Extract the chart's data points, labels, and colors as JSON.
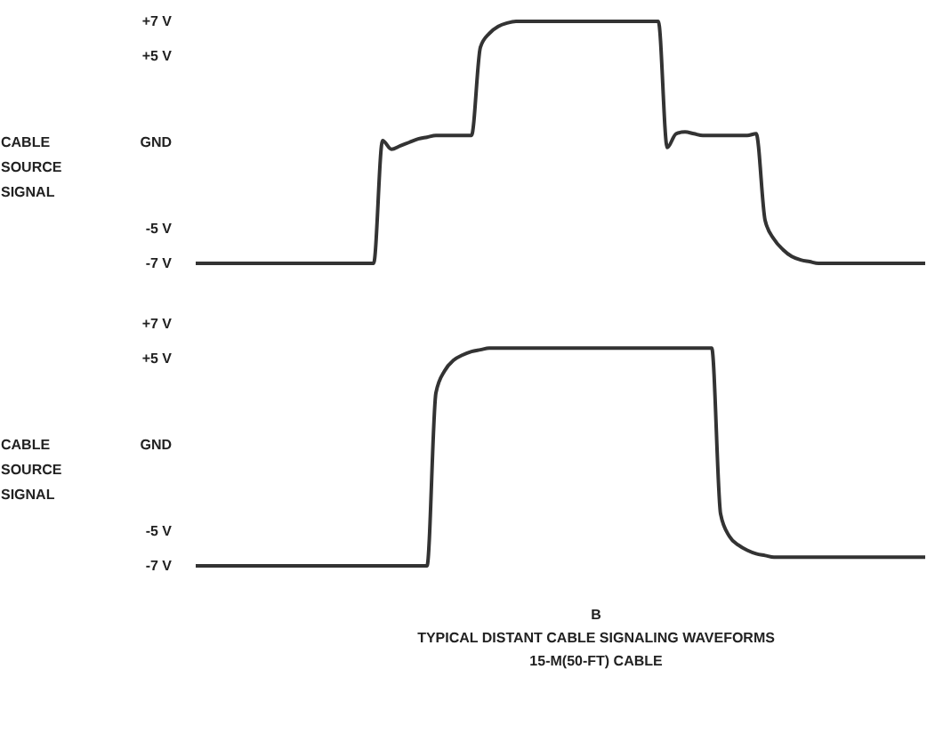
{
  "chart_data": [
    {
      "type": "line",
      "ylabel": "CABLE SOURCE SIGNAL",
      "color": "#333333",
      "grid": false,
      "ylim": [
        -7,
        7
      ],
      "yticks": [
        {
          "value": 7,
          "label": "+7 V"
        },
        {
          "value": 5,
          "label": "+5 V"
        },
        {
          "value": 0,
          "label": "GND"
        },
        {
          "value": -5,
          "label": "-5 V"
        },
        {
          "value": -7,
          "label": "-7 V"
        }
      ],
      "categories": [
        null,
        null,
        null,
        null,
        null,
        null,
        null,
        null,
        null,
        null,
        null,
        null,
        null,
        null,
        null,
        null,
        null,
        null,
        null,
        null,
        null,
        null,
        null,
        null,
        null,
        null,
        null,
        null,
        null,
        null,
        null,
        null,
        null,
        null,
        null,
        null,
        null,
        null,
        null,
        null,
        null,
        null,
        null,
        null,
        null,
        null,
        null,
        null,
        null,
        null,
        null,
        null,
        null,
        null,
        null,
        null,
        null,
        null,
        null,
        null,
        null,
        null,
        null,
        null,
        null,
        null,
        null,
        null,
        null,
        null,
        null,
        null,
        null,
        null,
        null,
        null,
        null,
        null,
        null,
        null,
        null,
        null,
        null
      ],
      "values": [
        -7,
        -7,
        -7,
        -7,
        -7,
        -7,
        -7,
        -7,
        -7,
        -7,
        -7,
        -7,
        -7,
        -7,
        -7,
        -7,
        -7,
        -7,
        -7,
        -7,
        -7,
        0.1,
        -0.4,
        -0.2,
        0,
        0.2,
        0.3,
        0.4,
        0.4,
        0.4,
        0.4,
        0.4,
        5.5,
        6.3,
        6.7,
        6.9,
        7,
        7,
        7,
        7,
        7,
        7,
        7,
        7,
        7,
        7,
        7,
        7,
        7,
        7,
        7,
        7,
        7,
        -0.3,
        0.5,
        0.6,
        0.5,
        0.4,
        0.4,
        0.4,
        0.4,
        0.4,
        0.4,
        0.5,
        -4.5,
        -5.6,
        -6.2,
        -6.6,
        -6.8,
        -6.9,
        -7,
        -7,
        -7,
        -7,
        -7,
        -7,
        -7,
        -7,
        -7,
        -7,
        -7,
        -7,
        -7
      ]
    },
    {
      "type": "line",
      "ylabel": "CABLE SOURCE SIGNAL",
      "color": "#333333",
      "grid": false,
      "ylim": [
        -7,
        7
      ],
      "yticks": [
        {
          "value": 7,
          "label": "+7 V"
        },
        {
          "value": 5,
          "label": "+5 V"
        },
        {
          "value": 0,
          "label": "GND"
        },
        {
          "value": -5,
          "label": "-5 V"
        },
        {
          "value": -7,
          "label": "-7 V"
        }
      ],
      "categories": [
        null,
        null,
        null,
        null,
        null,
        null,
        null,
        null,
        null,
        null,
        null,
        null,
        null,
        null,
        null,
        null,
        null,
        null,
        null,
        null,
        null,
        null,
        null,
        null,
        null,
        null,
        null,
        null,
        null,
        null,
        null,
        null,
        null,
        null,
        null,
        null,
        null,
        null,
        null,
        null,
        null,
        null,
        null,
        null,
        null,
        null,
        null,
        null,
        null,
        null,
        null,
        null,
        null,
        null,
        null,
        null,
        null,
        null,
        null,
        null,
        null,
        null,
        null,
        null,
        null,
        null,
        null,
        null,
        null,
        null,
        null,
        null,
        null,
        null,
        null,
        null,
        null,
        null,
        null,
        null,
        null,
        null,
        null
      ],
      "values": [
        -7,
        -7,
        -7,
        -7,
        -7,
        -7,
        -7,
        -7,
        -7,
        -7,
        -7,
        -7,
        -7,
        -7,
        -7,
        -7,
        -7,
        -7,
        -7,
        -7,
        -7,
        -7,
        -7,
        -7,
        -7,
        -7,
        -7,
        3,
        4.3,
        4.9,
        5.2,
        5.4,
        5.5,
        5.6,
        5.6,
        5.6,
        5.6,
        5.6,
        5.6,
        5.6,
        5.6,
        5.6,
        5.6,
        5.6,
        5.6,
        5.6,
        5.6,
        5.6,
        5.6,
        5.6,
        5.6,
        5.6,
        5.6,
        5.6,
        5.6,
        5.6,
        5.6,
        5.6,
        5.6,
        -4,
        -5.3,
        -5.8,
        -6.1,
        -6.3,
        -6.4,
        -6.5,
        -6.5,
        -6.5,
        -6.5,
        -6.5,
        -6.5,
        -6.5,
        -6.5,
        -6.5,
        -6.5,
        -6.5,
        -6.5,
        -6.5,
        -6.5,
        -6.5,
        -6.5,
        -6.5,
        -6.5
      ],
      "annotations": [
        "B",
        "TYPICAL DISTANT CABLE SIGNALING WAVEFORMS",
        "15-M(50-FT) CABLE"
      ]
    }
  ]
}
